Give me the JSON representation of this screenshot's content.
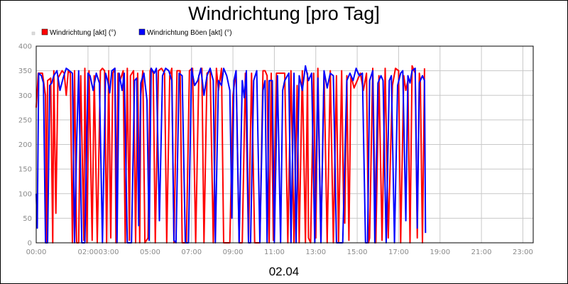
{
  "chart_data": {
    "type": "line",
    "title": "Windrichtung [pro Tag]",
    "xlabel": "02.04",
    "ylabel": "",
    "ylim": [
      0,
      400
    ],
    "yticks": [
      0,
      50,
      100,
      150,
      200,
      250,
      300,
      350,
      400
    ],
    "xlim": [
      0,
      24
    ],
    "xticks": [
      {
        "hour": 0,
        "label": "00:00"
      },
      {
        "hour": 2.5,
        "label": "02:00"
      },
      {
        "hour": 3.5,
        "label": "03:00"
      },
      {
        "hour": 5.5,
        "label": "05:00"
      },
      {
        "hour": 7.5,
        "label": "07:00"
      },
      {
        "hour": 9.5,
        "label": "09:00"
      },
      {
        "hour": 11.5,
        "label": "11:00"
      },
      {
        "hour": 13.5,
        "label": "13:00"
      },
      {
        "hour": 15.5,
        "label": "15:00"
      },
      {
        "hour": 17.5,
        "label": "17:00"
      },
      {
        "hour": 19.5,
        "label": "19:00"
      },
      {
        "hour": 21.5,
        "label": "21:00"
      },
      {
        "hour": 23.5,
        "label": "23:00"
      }
    ],
    "grid": true,
    "legend_position": "top-left",
    "series": [
      {
        "name": "Windrichtung [akt] (°)",
        "color": "#ff0000",
        "points": [
          [
            0.0,
            275
          ],
          [
            0.1,
            345
          ],
          [
            0.3,
            345
          ],
          [
            0.45,
            300
          ],
          [
            0.5,
            0
          ],
          [
            0.55,
            330
          ],
          [
            0.7,
            335
          ],
          [
            0.8,
            0
          ],
          [
            0.85,
            350
          ],
          [
            0.95,
            60
          ],
          [
            1.05,
            335
          ],
          [
            1.25,
            350
          ],
          [
            1.35,
            345
          ],
          [
            1.45,
            300
          ],
          [
            1.55,
            350
          ],
          [
            1.65,
            345
          ],
          [
            1.75,
            0
          ],
          [
            1.85,
            350
          ],
          [
            1.95,
            0
          ],
          [
            2.05,
            0
          ],
          [
            2.15,
            340
          ],
          [
            2.3,
            5
          ],
          [
            2.35,
            355
          ],
          [
            2.45,
            0
          ],
          [
            2.55,
            350
          ],
          [
            2.7,
            5
          ],
          [
            2.8,
            340
          ],
          [
            2.95,
            0
          ],
          [
            3.1,
            350
          ],
          [
            3.2,
            355
          ],
          [
            3.3,
            350
          ],
          [
            3.4,
            0
          ],
          [
            3.5,
            350
          ],
          [
            3.6,
            10
          ],
          [
            3.7,
            345
          ],
          [
            3.8,
            355
          ],
          [
            3.85,
            0
          ],
          [
            3.95,
            345
          ],
          [
            4.05,
            330
          ],
          [
            4.2,
            350
          ],
          [
            4.3,
            0
          ],
          [
            4.4,
            355
          ],
          [
            4.5,
            5
          ],
          [
            4.55,
            340
          ],
          [
            4.7,
            350
          ],
          [
            4.8,
            0
          ],
          [
            4.9,
            345
          ],
          [
            5.0,
            0
          ],
          [
            5.05,
            300
          ],
          [
            5.15,
            350
          ],
          [
            5.25,
            0
          ],
          [
            5.4,
            10
          ],
          [
            5.5,
            350
          ],
          [
            5.55,
            355
          ],
          [
            5.65,
            345
          ],
          [
            5.75,
            0
          ],
          [
            5.9,
            350
          ],
          [
            6.05,
            355
          ],
          [
            6.2,
            345
          ],
          [
            6.3,
            0
          ],
          [
            6.45,
            340
          ],
          [
            6.55,
            355
          ],
          [
            6.65,
            0
          ],
          [
            6.8,
            350
          ],
          [
            6.95,
            350
          ],
          [
            7.05,
            0
          ],
          [
            7.25,
            0
          ],
          [
            7.4,
            350
          ],
          [
            7.55,
            355
          ],
          [
            7.7,
            0
          ],
          [
            7.85,
            340
          ],
          [
            8.0,
            355
          ],
          [
            8.1,
            0
          ],
          [
            8.25,
            345
          ],
          [
            8.4,
            350
          ],
          [
            8.55,
            0
          ],
          [
            8.7,
            355
          ],
          [
            8.8,
            310
          ],
          [
            8.95,
            355
          ],
          [
            9.05,
            0
          ],
          [
            9.2,
            0
          ],
          [
            9.35,
            0
          ],
          [
            9.5,
            300
          ],
          [
            9.65,
            350
          ],
          [
            9.8,
            0
          ],
          [
            9.95,
            0
          ],
          [
            10.1,
            345
          ],
          [
            10.25,
            0
          ],
          [
            10.4,
            345
          ],
          [
            10.55,
            0
          ],
          [
            10.8,
            0
          ],
          [
            10.95,
            350
          ],
          [
            11.05,
            350
          ],
          [
            11.15,
            340
          ],
          [
            11.25,
            0
          ],
          [
            11.35,
            345
          ],
          [
            11.45,
            5
          ],
          [
            11.6,
            345
          ],
          [
            11.8,
            345
          ],
          [
            12.0,
            345
          ],
          [
            12.15,
            0
          ],
          [
            12.3,
            350
          ],
          [
            12.45,
            0
          ],
          [
            12.6,
            320
          ],
          [
            12.7,
            0
          ],
          [
            12.85,
            350
          ],
          [
            13.0,
            0
          ],
          [
            13.1,
            345
          ],
          [
            13.15,
            10
          ],
          [
            13.25,
            0
          ],
          [
            13.4,
            345
          ],
          [
            13.5,
            10
          ],
          [
            13.6,
            355
          ],
          [
            13.75,
            0
          ],
          [
            13.9,
            345
          ],
          [
            14.05,
            0
          ],
          [
            14.2,
            350
          ],
          [
            14.35,
            0
          ],
          [
            14.5,
            340
          ],
          [
            14.6,
            0
          ],
          [
            14.75,
            350
          ],
          [
            14.85,
            55
          ],
          [
            14.9,
            40
          ],
          [
            15.0,
            340
          ],
          [
            15.1,
            5
          ],
          [
            15.2,
            340
          ],
          [
            15.35,
            315
          ],
          [
            15.5,
            330
          ],
          [
            15.65,
            345
          ],
          [
            15.8,
            310
          ],
          [
            15.95,
            345
          ],
          [
            16.05,
            0
          ],
          [
            16.1,
            10
          ],
          [
            16.25,
            355
          ],
          [
            16.4,
            0
          ],
          [
            16.55,
            340
          ],
          [
            16.7,
            5
          ],
          [
            16.85,
            355
          ],
          [
            17.0,
            10
          ],
          [
            17.2,
            320
          ],
          [
            17.35,
            355
          ],
          [
            17.5,
            350
          ],
          [
            17.6,
            0
          ],
          [
            17.75,
            340
          ],
          [
            17.85,
            310
          ],
          [
            17.95,
            330
          ],
          [
            18.05,
            0
          ],
          [
            18.15,
            360
          ],
          [
            18.3,
            345
          ],
          [
            18.4,
            10
          ],
          [
            18.5,
            345
          ],
          [
            18.55,
            330
          ],
          [
            18.65,
            0
          ],
          [
            18.75,
            355
          ]
        ]
      },
      {
        "name": "Windrichtung Böen [akt] (°)",
        "color": "#0000ff",
        "points": [
          [
            0.0,
            100
          ],
          [
            0.05,
            30
          ],
          [
            0.12,
            345
          ],
          [
            0.25,
            340
          ],
          [
            0.35,
            325
          ],
          [
            0.45,
            0
          ],
          [
            0.55,
            0
          ],
          [
            0.65,
            320
          ],
          [
            0.75,
            325
          ],
          [
            0.85,
            340
          ],
          [
            1.0,
            350
          ],
          [
            1.15,
            310
          ],
          [
            1.3,
            335
          ],
          [
            1.45,
            355
          ],
          [
            1.6,
            350
          ],
          [
            1.75,
            345
          ],
          [
            1.85,
            0
          ],
          [
            1.95,
            200
          ],
          [
            2.05,
            350
          ],
          [
            2.2,
            0
          ],
          [
            2.35,
            0
          ],
          [
            2.5,
            345
          ],
          [
            2.6,
            340
          ],
          [
            2.75,
            310
          ],
          [
            2.9,
            345
          ],
          [
            3.05,
            325
          ],
          [
            3.2,
            0
          ],
          [
            3.35,
            345
          ],
          [
            3.45,
            330
          ],
          [
            3.55,
            305
          ],
          [
            3.65,
            350
          ],
          [
            3.8,
            355
          ],
          [
            3.9,
            0
          ],
          [
            4.0,
            345
          ],
          [
            4.15,
            310
          ],
          [
            4.25,
            345
          ],
          [
            4.4,
            0
          ],
          [
            4.6,
            0
          ],
          [
            4.75,
            330
          ],
          [
            4.85,
            335
          ],
          [
            4.95,
            35
          ],
          [
            5.05,
            325
          ],
          [
            5.2,
            345
          ],
          [
            5.35,
            290
          ],
          [
            5.45,
            5
          ],
          [
            5.55,
            355
          ],
          [
            5.7,
            345
          ],
          [
            5.8,
            355
          ],
          [
            5.95,
            45
          ],
          [
            6.1,
            340
          ],
          [
            6.25,
            355
          ],
          [
            6.4,
            350
          ],
          [
            6.55,
            330
          ],
          [
            6.65,
            5
          ],
          [
            6.75,
            0
          ],
          [
            6.9,
            345
          ],
          [
            7.05,
            340
          ],
          [
            7.2,
            0
          ],
          [
            7.35,
            0
          ],
          [
            7.5,
            355
          ],
          [
            7.65,
            320
          ],
          [
            7.8,
            330
          ],
          [
            7.95,
            355
          ],
          [
            8.1,
            300
          ],
          [
            8.25,
            340
          ],
          [
            8.4,
            355
          ],
          [
            8.55,
            330
          ],
          [
            8.65,
            0
          ],
          [
            8.8,
            330
          ],
          [
            8.95,
            320
          ],
          [
            9.05,
            355
          ],
          [
            9.2,
            340
          ],
          [
            9.35,
            310
          ],
          [
            9.45,
            50
          ],
          [
            9.55,
            330
          ],
          [
            9.65,
            350
          ],
          [
            9.8,
            0
          ],
          [
            9.95,
            330
          ],
          [
            10.05,
            295
          ],
          [
            10.15,
            350
          ],
          [
            10.25,
            0
          ],
          [
            10.35,
            0
          ],
          [
            10.5,
            330
          ],
          [
            10.65,
            350
          ],
          [
            10.8,
            0
          ],
          [
            10.95,
            310
          ],
          [
            11.05,
            330
          ],
          [
            11.15,
            0
          ],
          [
            11.25,
            330
          ],
          [
            11.4,
            330
          ],
          [
            11.5,
            0
          ],
          [
            11.65,
            340
          ],
          [
            11.8,
            0
          ],
          [
            11.9,
            310
          ],
          [
            12.0,
            330
          ],
          [
            12.2,
            345
          ],
          [
            12.3,
            0
          ],
          [
            12.45,
            345
          ],
          [
            12.55,
            0
          ],
          [
            12.7,
            340
          ],
          [
            12.85,
            310
          ],
          [
            13.0,
            360
          ],
          [
            13.15,
            330
          ],
          [
            13.3,
            345
          ],
          [
            13.45,
            0
          ],
          [
            13.6,
            335
          ],
          [
            13.75,
            0
          ],
          [
            13.9,
            350
          ],
          [
            14.05,
            315
          ],
          [
            14.2,
            345
          ],
          [
            14.35,
            340
          ],
          [
            14.5,
            0
          ],
          [
            14.65,
            0
          ],
          [
            14.8,
            0
          ],
          [
            15.0,
            330
          ],
          [
            15.15,
            345
          ],
          [
            15.3,
            330
          ],
          [
            15.45,
            355
          ],
          [
            15.6,
            340
          ],
          [
            15.75,
            345
          ],
          [
            15.9,
            0
          ],
          [
            16.0,
            0
          ],
          [
            16.1,
            330
          ],
          [
            16.25,
            350
          ],
          [
            16.35,
            0
          ],
          [
            16.5,
            325
          ],
          [
            16.65,
            340
          ],
          [
            16.75,
            330
          ],
          [
            16.9,
            0
          ],
          [
            17.05,
            330
          ],
          [
            17.15,
            340
          ],
          [
            17.3,
            0
          ],
          [
            17.45,
            320
          ],
          [
            17.6,
            345
          ],
          [
            17.7,
            350
          ],
          [
            17.85,
            45
          ],
          [
            17.95,
            340
          ],
          [
            18.05,
            325
          ],
          [
            18.15,
            350
          ],
          [
            18.3,
            355
          ],
          [
            18.4,
            30
          ],
          [
            18.5,
            325
          ],
          [
            18.65,
            340
          ],
          [
            18.75,
            330
          ],
          [
            18.8,
            20
          ]
        ]
      }
    ]
  }
}
